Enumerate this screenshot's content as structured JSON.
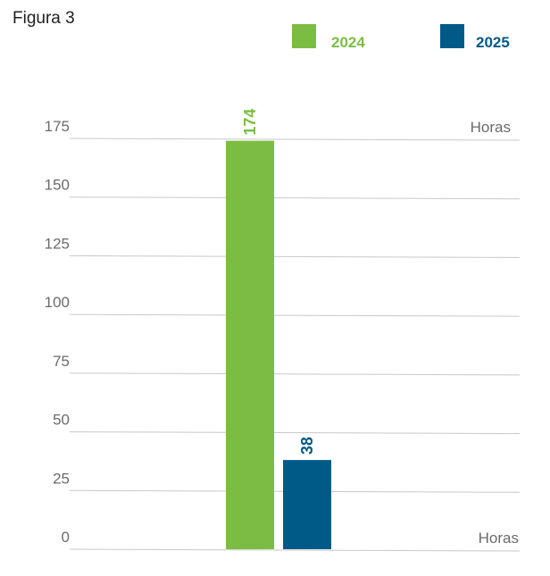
{
  "figure_label": "Figura 3",
  "colors": {
    "series_2024": "#7bbd42",
    "series_2025": "#005a87",
    "grid": "#c8c8c8",
    "tick_text": "#6b6b6b"
  },
  "legend": [
    {
      "label": "2024",
      "color": "#7bbd42"
    },
    {
      "label": "2025",
      "color": "#005a87"
    }
  ],
  "chart_data": {
    "type": "bar",
    "categories": [
      ""
    ],
    "series": [
      {
        "name": "2024",
        "values": [
          174
        ]
      },
      {
        "name": "2025",
        "values": [
          38
        ]
      }
    ],
    "data_labels": [
      "174",
      "38"
    ],
    "ylabel": "Horas",
    "ylim": [
      0,
      175
    ],
    "yticks": [
      0,
      25,
      50,
      75,
      100,
      125,
      150,
      175
    ],
    "grid": true,
    "legend_position": "top-right"
  }
}
